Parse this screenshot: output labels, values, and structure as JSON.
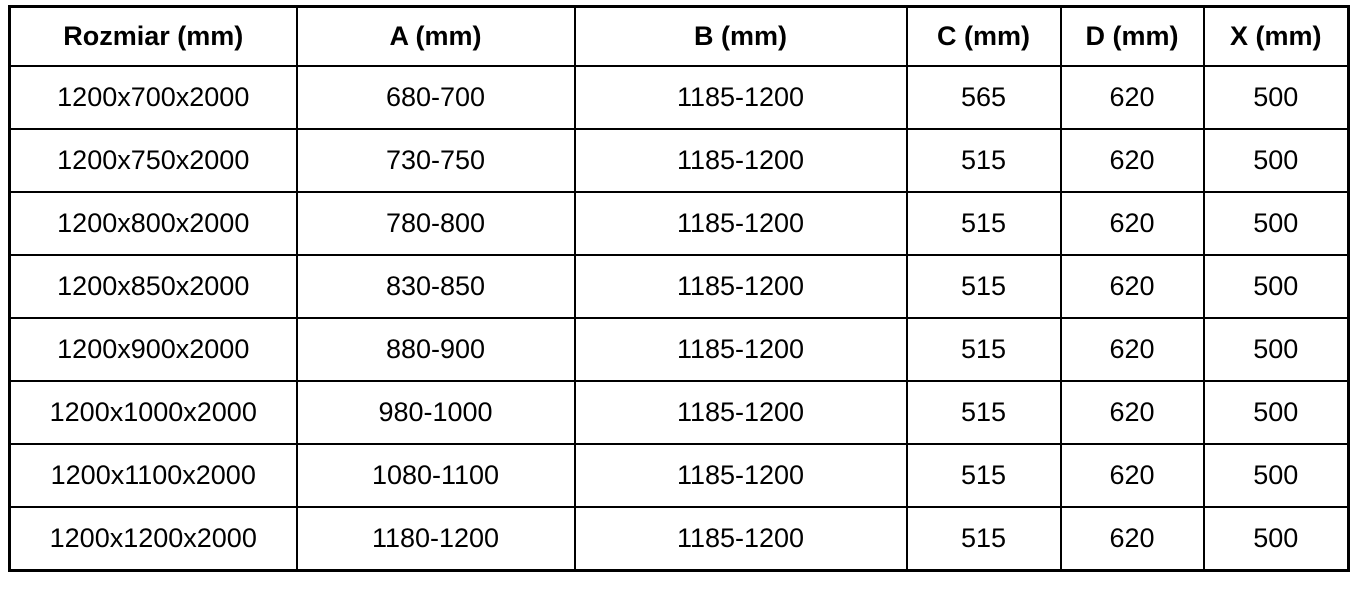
{
  "table": {
    "columns": [
      "Rozmiar (mm)",
      "A (mm)",
      "B (mm)",
      "C (mm)",
      "D (mm)",
      "X (mm)"
    ],
    "rows": [
      [
        "1200x700x2000",
        "680-700",
        "1185-1200",
        "565",
        "620",
        "500"
      ],
      [
        "1200x750x2000",
        "730-750",
        "1185-1200",
        "515",
        "620",
        "500"
      ],
      [
        "1200x800x2000",
        "780-800",
        "1185-1200",
        "515",
        "620",
        "500"
      ],
      [
        "1200x850x2000",
        "830-850",
        "1185-1200",
        "515",
        "620",
        "500"
      ],
      [
        "1200x900x2000",
        "880-900",
        "1185-1200",
        "515",
        "620",
        "500"
      ],
      [
        "1200x1000x2000",
        "980-1000",
        "1185-1200",
        "515",
        "620",
        "500"
      ],
      [
        "1200x1100x2000",
        "1080-1100",
        "1185-1200",
        "515",
        "620",
        "500"
      ],
      [
        "1200x1200x2000",
        "1180-1200",
        "1185-1200",
        "515",
        "620",
        "500"
      ]
    ],
    "colors": {
      "text": "#000000",
      "border": "#000000",
      "background": "#ffffff"
    }
  }
}
